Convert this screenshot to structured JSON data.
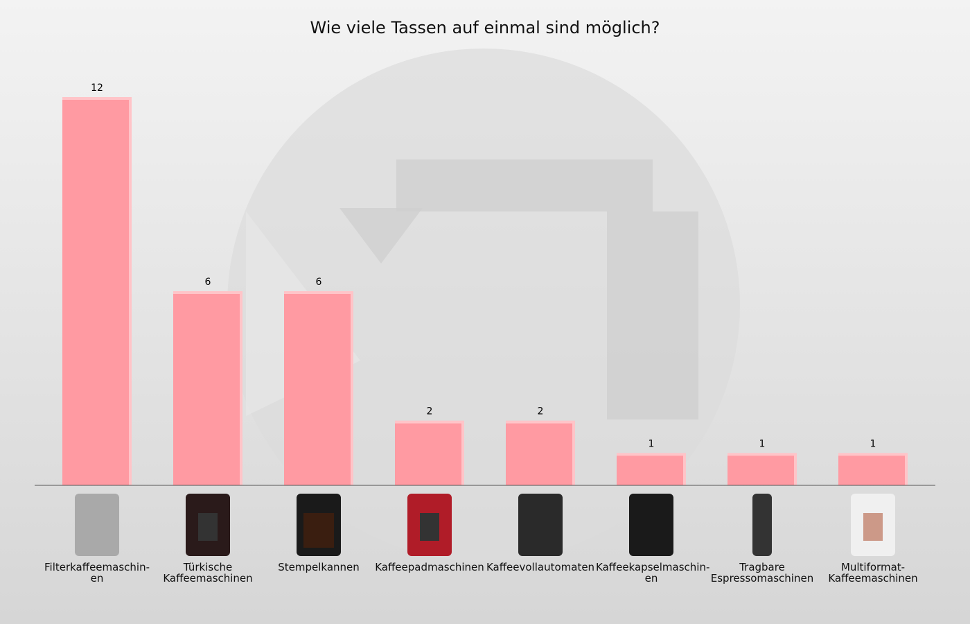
{
  "chart_data": {
    "type": "bar",
    "title": "Wie viele Tassen auf einmal sind möglich?",
    "categories": [
      "Filterkaffeemaschin-\nen",
      "Türkische\nKaffeemaschinen",
      "Stempelkannen",
      "Kaffeepadmaschinen",
      "Kaffeevollautomaten",
      "Kaffeekapselmaschin-\nen",
      "Tragbare\nEspressomaschinen",
      "Multiformat-\nKaffeemaschinen"
    ],
    "values": [
      12,
      6,
      6,
      2,
      2,
      1,
      1,
      1
    ],
    "ylim": [
      0,
      12
    ],
    "grid": false,
    "data_labels": true,
    "category_images": [
      "filter-coffee-machine",
      "turkish-coffee-machine",
      "french-press",
      "pad-coffee-machine",
      "fully-automatic-coffee-machine",
      "capsule-coffee-machine",
      "portable-espresso-machine",
      "multiformat-coffee-machine"
    ],
    "colors": {
      "bar": "#ff9aa2",
      "bar_edge": "#ffc4c8",
      "axis": "#555555",
      "watermark": "#d2d2d2"
    }
  }
}
